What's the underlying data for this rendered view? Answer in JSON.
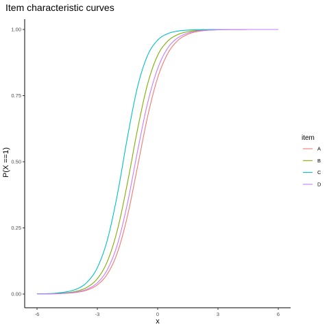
{
  "chart_data": {
    "type": "line",
    "title": "Item characteristic curves",
    "xlabel": "x",
    "ylabel": "P(X ==1)",
    "xlim": [
      -6,
      6
    ],
    "ylim": [
      0,
      1
    ],
    "x_ticks": [
      -6,
      -3,
      0,
      3,
      6
    ],
    "x_tick_labels": [
      "-6",
      "-3",
      "0",
      "3",
      "6"
    ],
    "y_ticks": [
      0,
      0.25,
      0.5,
      0.75,
      1
    ],
    "y_tick_labels": [
      "0.00",
      "0.25",
      "0.50",
      "0.75",
      "1.00"
    ],
    "grid": false,
    "legend": {
      "title": "item",
      "position": "right"
    },
    "x": [
      -6,
      -5,
      -4,
      -3.5,
      -3,
      -2.5,
      -2,
      -1.5,
      -1,
      -0.5,
      0,
      0.5,
      1,
      1.5,
      2,
      3,
      4,
      5,
      6
    ],
    "series": [
      {
        "name": "A",
        "color": "#F8766D",
        "values": [
          0.0002,
          0.0012,
          0.0067,
          0.0154,
          0.0347,
          0.0759,
          0.1572,
          0.2953,
          0.4814,
          0.6705,
          0.8173,
          0.9089,
          0.9581,
          0.9819,
          0.9925,
          0.9987,
          0.9998,
          1.0,
          1.0
        ]
      },
      {
        "name": "B",
        "color": "#7CAE00",
        "values": [
          0.0004,
          0.0021,
          0.0113,
          0.0261,
          0.0581,
          0.1236,
          0.2428,
          0.4207,
          0.6225,
          0.7936,
          0.9021,
          0.9558,
          0.9806,
          0.9916,
          0.9964,
          0.9993,
          0.9999,
          1.0,
          1.0
        ]
      },
      {
        "name": "C",
        "color": "#00BFC4",
        "values": [
          0.0007,
          0.0038,
          0.0199,
          0.0454,
          0.0997,
          0.2048,
          0.3775,
          0.5933,
          0.7829,
          0.902,
          0.9597,
          0.9841,
          0.9939,
          0.9976,
          0.9991,
          0.9999,
          1.0,
          1.0,
          1.0
        ]
      },
      {
        "name": "D",
        "color": "#C77CFF",
        "values": [
          0.0003,
          0.0015,
          0.0082,
          0.0189,
          0.0425,
          0.0926,
          0.188,
          0.3438,
          0.5398,
          0.7218,
          0.852,
          0.9296,
          0.9684,
          0.9863,
          0.9942,
          0.999,
          0.9998,
          1.0,
          1.0
        ]
      }
    ]
  }
}
